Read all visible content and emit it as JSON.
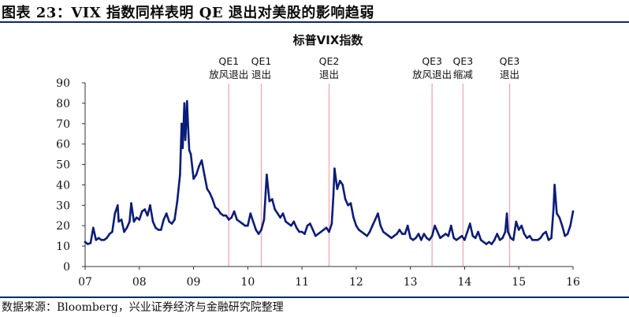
{
  "figure": {
    "title": "图表 23：VIX 指数同样表明 QE 退出对美股的影响趋弱",
    "source": "数据来源：Bloomberg，兴业证券经济与金融研究院整理"
  },
  "colors": {
    "series": "#0b1c7a",
    "event_line": "#f2a6b8",
    "rule": "#0a2a6b",
    "axis": "#333333"
  },
  "chart_data": {
    "type": "line",
    "title": "标普VIX指数",
    "xlabel": "",
    "ylabel": "",
    "ylim": [
      0,
      90
    ],
    "xlim": [
      2007,
      2016
    ],
    "y_ticks": [
      0,
      10,
      20,
      30,
      40,
      50,
      60,
      70,
      80,
      90
    ],
    "x_ticks": [
      2007,
      2008,
      2009,
      2010,
      2011,
      2012,
      2013,
      2014,
      2015,
      2016
    ],
    "x_tick_labels": [
      "07",
      "08",
      "09",
      "10",
      "11",
      "12",
      "13",
      "14",
      "15",
      "16"
    ],
    "grid": false,
    "legend": "none",
    "events": [
      {
        "x": 2009.65,
        "line1": "QE1",
        "line2": "放风退出"
      },
      {
        "x": 2010.25,
        "line1": "QE1",
        "line2": "退出"
      },
      {
        "x": 2011.5,
        "line1": "QE2",
        "line2": "退出"
      },
      {
        "x": 2013.4,
        "line1": "QE3",
        "line2": "放风退出"
      },
      {
        "x": 2013.97,
        "line1": "QE3",
        "line2": "缩减"
      },
      {
        "x": 2014.83,
        "line1": "QE3",
        "line2": "退出"
      }
    ],
    "series": [
      {
        "values": [
          [
            2007.0,
            12
          ],
          [
            2007.05,
            11
          ],
          [
            2007.1,
            11.5
          ],
          [
            2007.15,
            19
          ],
          [
            2007.2,
            13
          ],
          [
            2007.25,
            14
          ],
          [
            2007.3,
            13
          ],
          [
            2007.35,
            13
          ],
          [
            2007.4,
            14
          ],
          [
            2007.45,
            16
          ],
          [
            2007.5,
            17
          ],
          [
            2007.55,
            26
          ],
          [
            2007.6,
            30
          ],
          [
            2007.62,
            22
          ],
          [
            2007.67,
            23
          ],
          [
            2007.72,
            17
          ],
          [
            2007.77,
            19
          ],
          [
            2007.82,
            22
          ],
          [
            2007.85,
            31
          ],
          [
            2007.9,
            22
          ],
          [
            2007.95,
            24
          ],
          [
            2008.0,
            23
          ],
          [
            2008.05,
            27
          ],
          [
            2008.1,
            28
          ],
          [
            2008.15,
            25
          ],
          [
            2008.2,
            30
          ],
          [
            2008.25,
            22
          ],
          [
            2008.3,
            19
          ],
          [
            2008.35,
            18
          ],
          [
            2008.4,
            18
          ],
          [
            2008.45,
            23
          ],
          [
            2008.5,
            26
          ],
          [
            2008.55,
            22
          ],
          [
            2008.6,
            21
          ],
          [
            2008.65,
            23
          ],
          [
            2008.7,
            32
          ],
          [
            2008.75,
            45
          ],
          [
            2008.78,
            70
          ],
          [
            2008.8,
            58
          ],
          [
            2008.83,
            80
          ],
          [
            2008.85,
            62
          ],
          [
            2008.88,
            81
          ],
          [
            2008.9,
            68
          ],
          [
            2008.92,
            57
          ],
          [
            2008.95,
            55
          ],
          [
            2009.0,
            43
          ],
          [
            2009.05,
            45
          ],
          [
            2009.1,
            49
          ],
          [
            2009.15,
            52
          ],
          [
            2009.2,
            45
          ],
          [
            2009.25,
            38
          ],
          [
            2009.3,
            36
          ],
          [
            2009.35,
            33
          ],
          [
            2009.4,
            29
          ],
          [
            2009.45,
            28
          ],
          [
            2009.5,
            26
          ],
          [
            2009.55,
            25
          ],
          [
            2009.6,
            25
          ],
          [
            2009.65,
            23
          ],
          [
            2009.7,
            24
          ],
          [
            2009.75,
            27
          ],
          [
            2009.8,
            23
          ],
          [
            2009.85,
            22
          ],
          [
            2009.9,
            21
          ],
          [
            2009.95,
            20
          ],
          [
            2010.0,
            20
          ],
          [
            2010.05,
            26
          ],
          [
            2010.1,
            22
          ],
          [
            2010.15,
            18
          ],
          [
            2010.2,
            16
          ],
          [
            2010.25,
            18
          ],
          [
            2010.3,
            23
          ],
          [
            2010.33,
            36
          ],
          [
            2010.35,
            45
          ],
          [
            2010.4,
            32
          ],
          [
            2010.45,
            33
          ],
          [
            2010.5,
            28
          ],
          [
            2010.55,
            26
          ],
          [
            2010.6,
            24
          ],
          [
            2010.65,
            26
          ],
          [
            2010.7,
            22
          ],
          [
            2010.75,
            21
          ],
          [
            2010.8,
            20
          ],
          [
            2010.85,
            22
          ],
          [
            2010.9,
            19
          ],
          [
            2010.95,
            17
          ],
          [
            2011.0,
            17
          ],
          [
            2011.05,
            16
          ],
          [
            2011.1,
            20
          ],
          [
            2011.15,
            21
          ],
          [
            2011.2,
            18
          ],
          [
            2011.25,
            15
          ],
          [
            2011.3,
            16
          ],
          [
            2011.35,
            17
          ],
          [
            2011.4,
            18
          ],
          [
            2011.45,
            19
          ],
          [
            2011.5,
            17
          ],
          [
            2011.55,
            21
          ],
          [
            2011.58,
            35
          ],
          [
            2011.6,
            48
          ],
          [
            2011.65,
            38
          ],
          [
            2011.7,
            42
          ],
          [
            2011.75,
            40
          ],
          [
            2011.8,
            33
          ],
          [
            2011.85,
            30
          ],
          [
            2011.9,
            31
          ],
          [
            2011.95,
            24
          ],
          [
            2012.0,
            20
          ],
          [
            2012.05,
            18
          ],
          [
            2012.1,
            17
          ],
          [
            2012.15,
            16
          ],
          [
            2012.2,
            15
          ],
          [
            2012.25,
            17
          ],
          [
            2012.3,
            20
          ],
          [
            2012.35,
            23
          ],
          [
            2012.4,
            26
          ],
          [
            2012.45,
            20
          ],
          [
            2012.5,
            17
          ],
          [
            2012.55,
            16
          ],
          [
            2012.6,
            15
          ],
          [
            2012.65,
            14
          ],
          [
            2012.7,
            15
          ],
          [
            2012.75,
            16
          ],
          [
            2012.8,
            18
          ],
          [
            2012.85,
            16
          ],
          [
            2012.9,
            16
          ],
          [
            2012.95,
            20
          ],
          [
            2013.0,
            14
          ],
          [
            2013.05,
            13
          ],
          [
            2013.1,
            14
          ],
          [
            2013.15,
            16
          ],
          [
            2013.2,
            13
          ],
          [
            2013.25,
            16
          ],
          [
            2013.3,
            14
          ],
          [
            2013.35,
            13
          ],
          [
            2013.4,
            15
          ],
          [
            2013.45,
            20
          ],
          [
            2013.5,
            17
          ],
          [
            2013.55,
            14
          ],
          [
            2013.6,
            15
          ],
          [
            2013.65,
            16
          ],
          [
            2013.7,
            15
          ],
          [
            2013.75,
            20
          ],
          [
            2013.8,
            14
          ],
          [
            2013.85,
            13
          ],
          [
            2013.9,
            14
          ],
          [
            2013.95,
            15
          ],
          [
            2014.0,
            13
          ],
          [
            2014.05,
            17
          ],
          [
            2014.1,
            21
          ],
          [
            2014.15,
            15
          ],
          [
            2014.2,
            14
          ],
          [
            2014.25,
            17
          ],
          [
            2014.3,
            13
          ],
          [
            2014.35,
            12
          ],
          [
            2014.4,
            11
          ],
          [
            2014.45,
            12
          ],
          [
            2014.5,
            11
          ],
          [
            2014.55,
            13
          ],
          [
            2014.6,
            16
          ],
          [
            2014.65,
            13
          ],
          [
            2014.7,
            14
          ],
          [
            2014.75,
            17
          ],
          [
            2014.78,
            26
          ],
          [
            2014.8,
            17
          ],
          [
            2014.85,
            14
          ],
          [
            2014.9,
            13
          ],
          [
            2014.95,
            22
          ],
          [
            2015.0,
            18
          ],
          [
            2015.05,
            20
          ],
          [
            2015.1,
            16
          ],
          [
            2015.15,
            14
          ],
          [
            2015.2,
            15
          ],
          [
            2015.25,
            13
          ],
          [
            2015.3,
            13
          ],
          [
            2015.35,
            13
          ],
          [
            2015.4,
            14
          ],
          [
            2015.45,
            16
          ],
          [
            2015.5,
            17
          ],
          [
            2015.55,
            13
          ],
          [
            2015.6,
            14
          ],
          [
            2015.64,
            28
          ],
          [
            2015.66,
            40
          ],
          [
            2015.7,
            26
          ],
          [
            2015.75,
            24
          ],
          [
            2015.8,
            20
          ],
          [
            2015.85,
            15
          ],
          [
            2015.9,
            16
          ],
          [
            2015.95,
            20
          ],
          [
            2016.0,
            27
          ]
        ]
      }
    ]
  }
}
